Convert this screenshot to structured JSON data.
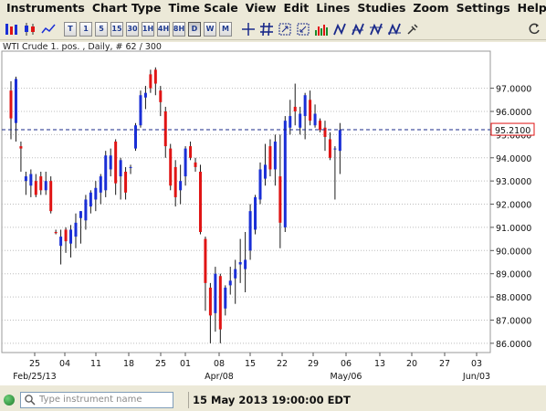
{
  "menu": [
    "Instruments",
    "Chart Type",
    "Time Scale",
    "View",
    "Edit",
    "Lines",
    "Studies",
    "Zoom",
    "Settings",
    "Help"
  ],
  "toolbar": {
    "timeframes": [
      "T",
      "1",
      "5",
      "15",
      "30",
      "1H",
      "4H",
      "8H",
      "D",
      "W",
      "M"
    ],
    "active_timeframe": "D"
  },
  "chart": {
    "title": "WTI Crude 1. pos. , Daily, # 62 / 300",
    "current_price_label": "95.2100",
    "current_price": 95.21,
    "colors": {
      "up": "#1a2fd6",
      "down": "#e01414",
      "grid": "#bdbdbd",
      "price_line": "#1a2a8a",
      "price_tag_border": "#e01414"
    }
  },
  "chart_data": {
    "type": "candlestick",
    "y_ticks": [
      "97.0000",
      "96.0000",
      "95.0000",
      "94.0000",
      "93.0000",
      "92.0000",
      "91.0000",
      "90.0000",
      "89.0000",
      "88.0000",
      "87.0000",
      "86.0000"
    ],
    "ylim": [
      85.6,
      98.6
    ],
    "x_ticks": [
      "25",
      "04",
      "11",
      "18",
      "25",
      "01",
      "08",
      "15",
      "22",
      "29",
      "06",
      "13",
      "20",
      "27",
      "03"
    ],
    "x_secondary": [
      "Feb/25/13",
      "Apr/08",
      "May/06",
      "Jun/03"
    ],
    "candles": [
      {
        "o": 96.9,
        "h": 97.3,
        "l": 94.8,
        "c": 95.7
      },
      {
        "o": 95.5,
        "h": 97.5,
        "l": 94.7,
        "c": 97.4
      },
      {
        "o": 94.5,
        "h": 94.7,
        "l": 93.4,
        "c": 94.4
      },
      {
        "o": 93.0,
        "h": 93.4,
        "l": 92.4,
        "c": 93.2
      },
      {
        "o": 92.8,
        "h": 93.5,
        "l": 92.3,
        "c": 93.3
      },
      {
        "o": 93.0,
        "h": 93.3,
        "l": 92.3,
        "c": 92.4
      },
      {
        "o": 93.2,
        "h": 93.4,
        "l": 92.4,
        "c": 92.6
      },
      {
        "o": 92.6,
        "h": 93.4,
        "l": 92.4,
        "c": 93.0
      },
      {
        "o": 93.0,
        "h": 93.2,
        "l": 91.6,
        "c": 91.7
      },
      {
        "o": 90.8,
        "h": 90.9,
        "l": 90.7,
        "c": 90.75
      },
      {
        "o": 90.2,
        "h": 90.9,
        "l": 89.4,
        "c": 90.6
      },
      {
        "o": 90.9,
        "h": 91.0,
        "l": 89.9,
        "c": 90.4
      },
      {
        "o": 90.3,
        "h": 91.1,
        "l": 89.7,
        "c": 90.9
      },
      {
        "o": 90.6,
        "h": 91.6,
        "l": 90.1,
        "c": 91.2
      },
      {
        "o": 91.4,
        "h": 91.7,
        "l": 90.3,
        "c": 91.7
      },
      {
        "o": 91.3,
        "h": 92.4,
        "l": 90.9,
        "c": 92.2
      },
      {
        "o": 91.9,
        "h": 92.6,
        "l": 91.6,
        "c": 92.5
      },
      {
        "o": 92.2,
        "h": 93.0,
        "l": 91.7,
        "c": 92.7
      },
      {
        "o": 92.5,
        "h": 93.3,
        "l": 92.0,
        "c": 93.2
      },
      {
        "o": 92.6,
        "h": 94.3,
        "l": 92.3,
        "c": 94.1
      },
      {
        "o": 93.5,
        "h": 94.4,
        "l": 93.2,
        "c": 94.1
      },
      {
        "o": 94.7,
        "h": 94.8,
        "l": 92.4,
        "c": 92.9
      },
      {
        "o": 93.2,
        "h": 94.0,
        "l": 92.2,
        "c": 93.9
      },
      {
        "o": 93.4,
        "h": 93.6,
        "l": 92.2,
        "c": 92.5
      },
      {
        "o": 93.6,
        "h": 93.7,
        "l": 93.3,
        "c": 93.6
      },
      {
        "o": 94.4,
        "h": 95.5,
        "l": 94.3,
        "c": 95.4
      },
      {
        "o": 95.4,
        "h": 96.9,
        "l": 95.3,
        "c": 96.7
      },
      {
        "o": 96.6,
        "h": 97.1,
        "l": 96.1,
        "c": 96.8
      },
      {
        "o": 97.6,
        "h": 97.8,
        "l": 96.8,
        "c": 97.0
      },
      {
        "o": 97.8,
        "h": 97.9,
        "l": 96.7,
        "c": 97.2
      },
      {
        "o": 96.9,
        "h": 97.1,
        "l": 95.8,
        "c": 96.4
      },
      {
        "o": 96.0,
        "h": 96.2,
        "l": 94.0,
        "c": 94.5
      },
      {
        "o": 94.4,
        "h": 94.6,
        "l": 92.6,
        "c": 92.8
      },
      {
        "o": 93.6,
        "h": 93.9,
        "l": 91.9,
        "c": 92.3
      },
      {
        "o": 92.6,
        "h": 93.7,
        "l": 92.0,
        "c": 93.0
      },
      {
        "o": 93.2,
        "h": 94.5,
        "l": 92.8,
        "c": 94.4
      },
      {
        "o": 94.5,
        "h": 94.7,
        "l": 93.9,
        "c": 94.0
      },
      {
        "o": 93.8,
        "h": 94.0,
        "l": 93.4,
        "c": 93.6
      },
      {
        "o": 93.4,
        "h": 93.7,
        "l": 90.7,
        "c": 90.8
      },
      {
        "o": 90.5,
        "h": 90.6,
        "l": 87.4,
        "c": 88.6
      },
      {
        "o": 88.4,
        "h": 88.6,
        "l": 86.0,
        "c": 87.2
      },
      {
        "o": 87.3,
        "h": 89.3,
        "l": 86.5,
        "c": 89.0
      },
      {
        "o": 88.9,
        "h": 89.0,
        "l": 86.0,
        "c": 86.6
      },
      {
        "o": 87.5,
        "h": 88.5,
        "l": 87.2,
        "c": 88.4
      },
      {
        "o": 88.5,
        "h": 89.3,
        "l": 88.1,
        "c": 88.7
      },
      {
        "o": 88.8,
        "h": 89.6,
        "l": 87.7,
        "c": 89.2
      },
      {
        "o": 89.4,
        "h": 90.5,
        "l": 88.6,
        "c": 89.5
      },
      {
        "o": 89.2,
        "h": 90.8,
        "l": 88.2,
        "c": 89.6
      },
      {
        "o": 90.0,
        "h": 92.0,
        "l": 89.6,
        "c": 91.7
      },
      {
        "o": 90.9,
        "h": 92.4,
        "l": 90.7,
        "c": 92.3
      },
      {
        "o": 92.2,
        "h": 93.8,
        "l": 92.0,
        "c": 93.5
      },
      {
        "o": 93.1,
        "h": 94.6,
        "l": 92.8,
        "c": 93.7
      },
      {
        "o": 94.5,
        "h": 94.8,
        "l": 93.2,
        "c": 93.5
      },
      {
        "o": 93.5,
        "h": 95.0,
        "l": 92.8,
        "c": 94.7
      },
      {
        "o": 93.2,
        "h": 95.0,
        "l": 90.1,
        "c": 91.2
      },
      {
        "o": 91.0,
        "h": 95.8,
        "l": 90.8,
        "c": 95.6
      },
      {
        "o": 95.3,
        "h": 96.5,
        "l": 95.0,
        "c": 95.8
      },
      {
        "o": 96.2,
        "h": 97.2,
        "l": 95.4,
        "c": 96.0
      },
      {
        "o": 95.3,
        "h": 96.2,
        "l": 95.0,
        "c": 95.9
      },
      {
        "o": 95.8,
        "h": 96.8,
        "l": 94.8,
        "c": 96.7
      },
      {
        "o": 96.5,
        "h": 96.9,
        "l": 95.4,
        "c": 95.6
      },
      {
        "o": 95.4,
        "h": 96.3,
        "l": 95.3,
        "c": 95.9
      },
      {
        "o": 95.6,
        "h": 95.7,
        "l": 95.1,
        "c": 95.2
      },
      {
        "o": 95.3,
        "h": 95.6,
        "l": 94.3,
        "c": 94.9
      },
      {
        "o": 94.8,
        "h": 95.1,
        "l": 93.9,
        "c": 94.0
      },
      {
        "o": 94.4,
        "h": 94.5,
        "l": 92.2,
        "c": 94.4
      },
      {
        "o": 94.3,
        "h": 95.5,
        "l": 93.3,
        "c": 95.2
      }
    ]
  },
  "status": {
    "search_placeholder": "Type instrument name",
    "datetime": "15 May 2013 19:00:00 EDT"
  }
}
